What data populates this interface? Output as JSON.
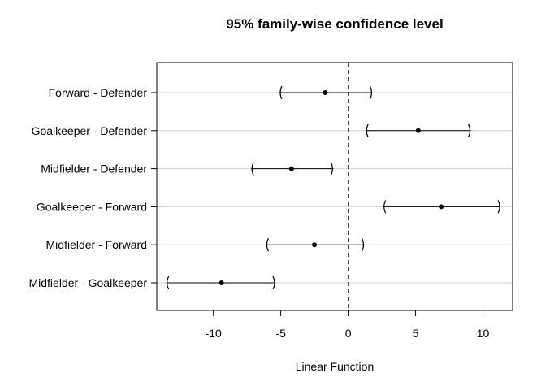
{
  "chart_data": {
    "type": "interval",
    "title": "95% family-wise confidence level",
    "xlabel": "Linear Function",
    "ylabel": "",
    "xlim": [
      -14.2,
      12.2
    ],
    "xticks": [
      -10,
      -5,
      0,
      5,
      10
    ],
    "xtick_labels": [
      "-10",
      "-5",
      "0",
      "5",
      "10"
    ],
    "reference_line": 0,
    "grid": "horizontal",
    "comparisons": [
      {
        "label": "Forward - Defender",
        "estimate": -1.7,
        "lower": -5.1,
        "upper": 1.8
      },
      {
        "label": "Goalkeeper - Defender",
        "estimate": 5.2,
        "lower": 1.3,
        "upper": 9.1
      },
      {
        "label": "Midfielder - Defender",
        "estimate": -4.2,
        "lower": -7.2,
        "upper": -1.1
      },
      {
        "label": "Goalkeeper - Forward",
        "estimate": 6.9,
        "lower": 2.6,
        "upper": 11.3
      },
      {
        "label": "Midfielder - Forward",
        "estimate": -2.5,
        "lower": -6.1,
        "upper": 1.2
      },
      {
        "label": "Midfielder - Goalkeeper",
        "estimate": -9.4,
        "lower": -13.5,
        "upper": -5.4
      }
    ]
  }
}
